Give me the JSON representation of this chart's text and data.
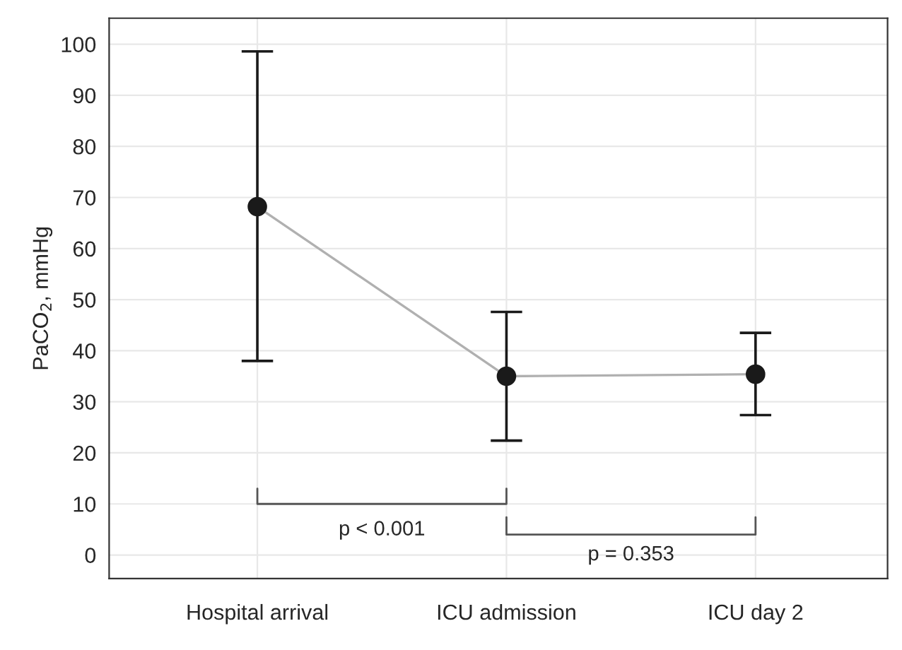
{
  "chart_data": {
    "type": "line",
    "ylabel": "PaCO$_{2}$, mmHg",
    "categories": [
      "Hospital arrival",
      "ICU admission",
      "ICU day 2"
    ],
    "series": [
      {
        "color": "#b0b0b0",
        "colors": [
          "#1a1a1a",
          "#1a1a1a",
          "#1a1a1a"
        ],
        "values": [
          68.2,
          35.0,
          35.4
        ],
        "errors": [
          [
            38.0,
            98.6
          ],
          [
            22.4,
            47.6
          ],
          [
            27.4,
            43.5
          ]
        ]
      }
    ],
    "ylim": [
      -4.6,
      105.1
    ],
    "yticks": [
      0,
      10,
      20,
      30,
      40,
      50,
      60,
      70,
      80,
      90,
      100
    ],
    "grid": true,
    "marker": "circle",
    "line_style": "solid",
    "annotations": [
      "p < 0.001",
      "p = 0.353"
    ]
  }
}
